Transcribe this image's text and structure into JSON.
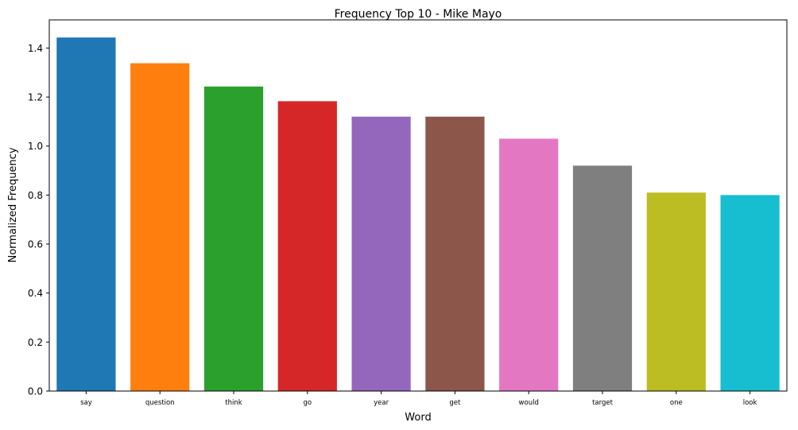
{
  "chart_data": {
    "type": "bar",
    "title": "Frequency Top 10 - Mike Mayo",
    "xlabel": "Word",
    "ylabel": "Normalized Frequency",
    "categories": [
      "say",
      "question",
      "think",
      "go",
      "year",
      "get",
      "would",
      "target",
      "one",
      "look"
    ],
    "values": [
      1.443,
      1.338,
      1.243,
      1.183,
      1.12,
      1.12,
      1.03,
      0.92,
      0.81,
      0.8
    ],
    "colors": [
      "#1f77b4",
      "#ff7f0e",
      "#2ca02c",
      "#d62728",
      "#9467bd",
      "#8c564b",
      "#e377c2",
      "#7f7f7f",
      "#bcbd22",
      "#17becf"
    ],
    "ylim": [
      0,
      1.515
    ],
    "yticks": [
      0.0,
      0.2,
      0.4,
      0.6,
      0.8,
      1.0,
      1.2,
      1.4
    ],
    "ytick_labels": [
      "0.0",
      "0.2",
      "0.4",
      "0.6",
      "0.8",
      "1.0",
      "1.2",
      "1.4"
    ],
    "grid": false,
    "legend": "none"
  }
}
